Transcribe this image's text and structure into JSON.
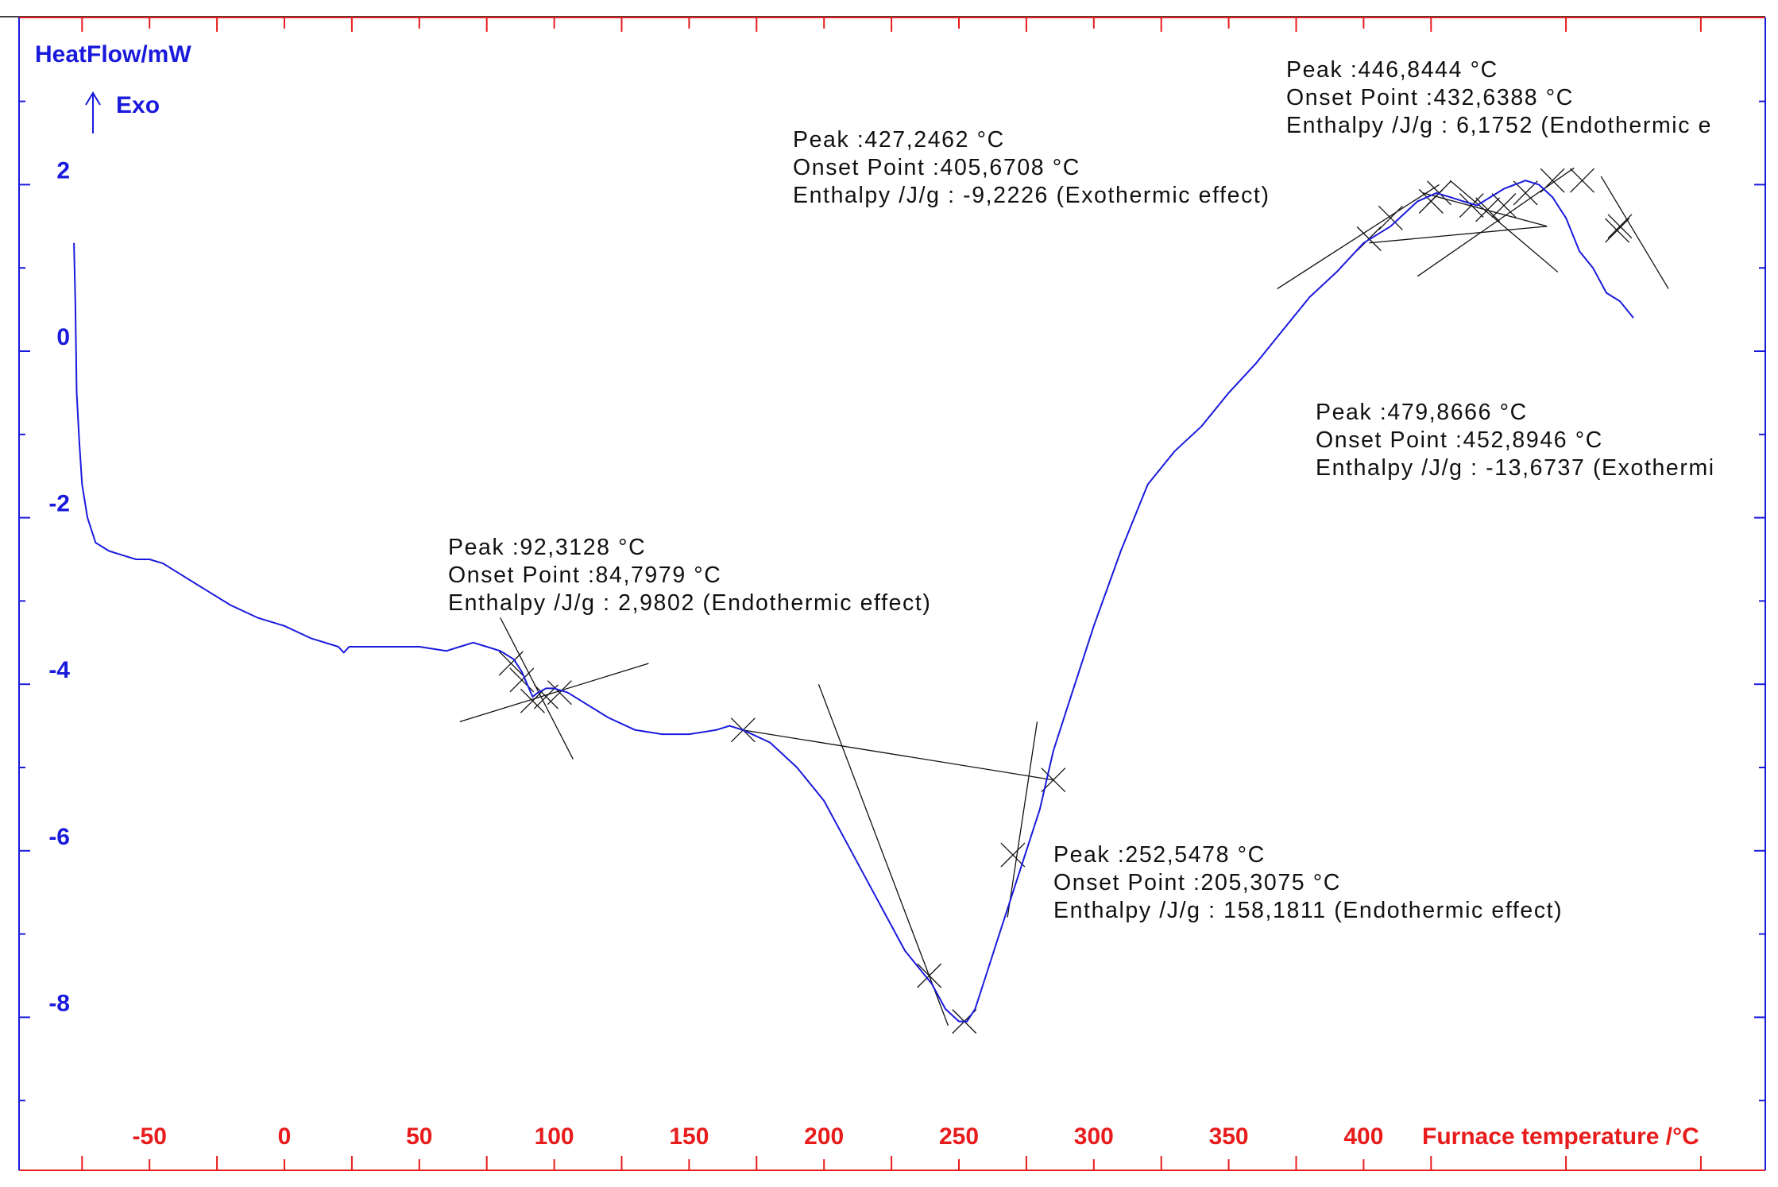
{
  "chart_data": {
    "type": "line",
    "title": "",
    "ylabel": "HeatFlow/mW",
    "exo_label": "Exo",
    "xlabel": "Furnace temperature /°C",
    "xlim": [
      -100,
      555
    ],
    "ylim": [
      -9.6,
      3.9
    ],
    "y_ticks": [
      2,
      0,
      -2,
      -4,
      -6,
      -8
    ],
    "y_tick_labels": [
      "2",
      "0",
      "-2",
      "-4",
      "-6",
      "-8"
    ],
    "x_ticks": [
      -50,
      0,
      50,
      100,
      150,
      200,
      250,
      300,
      350,
      400
    ],
    "x_tick_labels": [
      "-50",
      "0",
      "50",
      "100",
      "150",
      "200",
      "250",
      "300",
      "350",
      "400"
    ],
    "grid": false,
    "colors": {
      "curve": "#1a1adc",
      "x_axis": "#e81c1c",
      "y_axis": "#1a1adc",
      "construction": "#111111"
    },
    "series": [
      {
        "x": [
          -78,
          -77.5,
          -77,
          -76,
          -75,
          -73,
          -70,
          -65,
          -60,
          -55,
          -50,
          -45,
          -40,
          -30,
          -20,
          -10,
          0,
          10,
          20,
          22,
          24,
          26,
          30,
          40,
          50,
          60,
          65,
          70,
          75,
          80,
          85,
          88,
          90,
          92,
          94,
          97,
          100,
          105,
          110,
          120,
          130,
          140,
          150,
          160,
          165,
          170,
          180,
          190,
          200,
          210,
          220,
          230,
          240,
          245,
          250,
          253,
          256,
          260,
          265,
          270,
          275,
          280,
          285,
          290,
          300,
          310,
          320,
          330,
          340,
          350,
          360,
          370,
          380,
          390,
          400,
          405,
          410,
          415,
          420,
          427,
          432,
          437,
          442,
          447,
          452,
          460,
          465,
          470,
          475,
          480,
          485,
          490,
          495,
          500
        ],
        "y": [
          1.3,
          0.6,
          -0.5,
          -1.1,
          -1.6,
          -2.0,
          -2.3,
          -2.4,
          -2.45,
          -2.5,
          -2.5,
          -2.55,
          -2.65,
          -2.85,
          -3.05,
          -3.2,
          -3.3,
          -3.45,
          -3.55,
          -3.62,
          -3.55,
          -3.55,
          -3.55,
          -3.55,
          -3.55,
          -3.6,
          -3.55,
          -3.5,
          -3.55,
          -3.6,
          -3.7,
          -3.85,
          -4.0,
          -4.15,
          -4.1,
          -4.05,
          -4.05,
          -4.1,
          -4.2,
          -4.4,
          -4.55,
          -4.6,
          -4.6,
          -4.55,
          -4.5,
          -4.55,
          -4.7,
          -5.0,
          -5.4,
          -6.0,
          -6.6,
          -7.2,
          -7.6,
          -7.9,
          -8.05,
          -8.05,
          -7.9,
          -7.5,
          -7.0,
          -6.5,
          -6.0,
          -5.5,
          -4.8,
          -4.3,
          -3.3,
          -2.4,
          -1.6,
          -1.2,
          -0.9,
          -0.5,
          -0.15,
          0.25,
          0.65,
          0.95,
          1.3,
          1.4,
          1.5,
          1.65,
          1.8,
          1.9,
          1.85,
          1.8,
          1.75,
          1.85,
          1.95,
          2.05,
          2.0,
          1.85,
          1.6,
          1.2,
          1.0,
          0.7,
          0.6,
          0.4
        ]
      }
    ],
    "peaks": [
      {
        "peak": "Peak :92,3128 °C",
        "onset": "Onset Point :84,7979 °C",
        "enthalpy": "Enthalpy /J/g : 2,9802 (Endothermic effect)"
      },
      {
        "peak": "Peak :252,5478 °C",
        "onset": "Onset Point :205,3075 °C",
        "enthalpy": "Enthalpy /J/g : 158,1811 (Endothermic effect)"
      },
      {
        "peak": "Peak :427,2462 °C",
        "onset": "Onset Point :405,6708 °C",
        "enthalpy": "Enthalpy /J/g : -9,2226 (Exothermic effect)"
      },
      {
        "peak": "Peak :446,8444 °C",
        "onset": "Onset Point :432,6388 °C",
        "enthalpy": "Enthalpy /J/g : 6,1752 (Endothermic e"
      },
      {
        "peak": "Peak :479,8666 °C",
        "onset": "Onset Point :452,8946 °C",
        "enthalpy": "Enthalpy /J/g : -13,6737 (Exothermi"
      }
    ],
    "construction_lines": [
      [
        [
          80,
          -3.2
        ],
        [
          107,
          -4.9
        ]
      ],
      [
        [
          65,
          -4.45
        ],
        [
          135,
          -3.75
        ]
      ],
      [
        [
          170,
          -4.55
        ],
        [
          285,
          -5.15
        ]
      ],
      [
        [
          198,
          -4.0
        ],
        [
          246,
          -8.1
        ]
      ],
      [
        [
          268,
          -6.8
        ],
        [
          279,
          -4.45
        ]
      ],
      [
        [
          368,
          0.75
        ],
        [
          428,
          2.0
        ]
      ],
      [
        [
          402,
          1.3
        ],
        [
          468,
          1.5
        ]
      ],
      [
        [
          422,
          1.9
        ],
        [
          468,
          1.5
        ]
      ],
      [
        [
          420,
          0.9
        ],
        [
          478,
          2.2
        ]
      ],
      [
        [
          432,
          2.05
        ],
        [
          472,
          0.95
        ]
      ],
      [
        [
          488,
          2.1
        ],
        [
          513,
          0.75
        ]
      ]
    ],
    "markers": [
      [
        84,
        -3.75
      ],
      [
        88,
        -3.95
      ],
      [
        92,
        -4.2
      ],
      [
        97,
        -4.15
      ],
      [
        102,
        -4.1
      ],
      [
        170,
        -4.55
      ],
      [
        239,
        -7.5
      ],
      [
        270,
        -6.05
      ],
      [
        285,
        -5.15
      ],
      [
        402,
        1.35
      ],
      [
        410,
        1.6
      ],
      [
        425,
        1.8
      ],
      [
        428,
        1.9
      ],
      [
        440,
        1.75
      ],
      [
        446,
        1.7
      ],
      [
        452,
        1.75
      ],
      [
        460,
        1.9
      ],
      [
        470,
        2.05
      ],
      [
        481,
        2.05
      ],
      [
        494,
        1.45
      ],
      [
        495,
        1.5
      ],
      [
        252,
        -8.05
      ]
    ]
  }
}
